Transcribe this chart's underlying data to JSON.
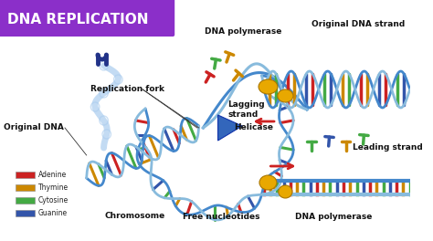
{
  "title": "DNA REPLICATION",
  "title_bg_color": "#8B2FC9",
  "title_text_color": "#FFFFFF",
  "bg_color": "#FFFFFF",
  "strand1_color": "#4488CC",
  "strand2_color": "#88BBDD",
  "polymerase_color": "#E8A800",
  "helicase_color": "#3366BB",
  "legend": [
    {
      "label": "Adenine",
      "color": "#CC2222"
    },
    {
      "label": "Thymine",
      "color": "#CC8800"
    },
    {
      "label": "Cytosine",
      "color": "#44AA44"
    },
    {
      "label": "Guanine",
      "color": "#3355AA"
    }
  ],
  "labels": {
    "chromosome": [
      "Chromosome",
      0.255,
      0.895
    ],
    "free_nucleotides": [
      "Free nucleotides",
      0.445,
      0.9
    ],
    "dna_polymerase_top": [
      "DNA polymerase",
      0.72,
      0.9
    ],
    "leading_strand": [
      "Leading strand",
      0.86,
      0.61
    ],
    "original_dna": [
      "Original DNA",
      0.01,
      0.53
    ],
    "helicase": [
      "Helicase",
      0.57,
      0.53
    ],
    "lagging_strand": [
      "Lagging\nstrand",
      0.555,
      0.455
    ],
    "replication_fork": [
      "Replication fork",
      0.22,
      0.37
    ],
    "dna_polymerase_bottom": [
      "DNA polymerase",
      0.5,
      0.13
    ],
    "original_dna_strand": [
      "Original DNA strand",
      0.76,
      0.1
    ]
  }
}
